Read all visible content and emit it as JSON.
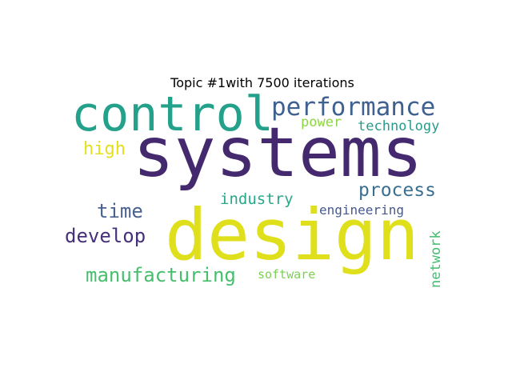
{
  "title": "Topic #1with 7500 iterations",
  "words": [
    {
      "text": "systems",
      "color": "#45296e"
    },
    {
      "text": "design",
      "color": "#dfe01b"
    },
    {
      "text": "control",
      "color": "#23a18a"
    },
    {
      "text": "performance",
      "color": "#3e6190"
    },
    {
      "text": "process",
      "color": "#3b6f90"
    },
    {
      "text": "develop",
      "color": "#46307a"
    },
    {
      "text": "manufacturing",
      "color": "#46bf6d"
    },
    {
      "text": "time",
      "color": "#4a6190"
    },
    {
      "text": "high",
      "color": "#e3e11c"
    },
    {
      "text": "industry",
      "color": "#27a889"
    },
    {
      "text": "technology",
      "color": "#279c8c"
    },
    {
      "text": "power",
      "color": "#8dd544"
    },
    {
      "text": "engineering",
      "color": "#47588e"
    },
    {
      "text": "software",
      "color": "#7dd054"
    },
    {
      "text": "network",
      "color": "#43bd6f"
    }
  ]
}
